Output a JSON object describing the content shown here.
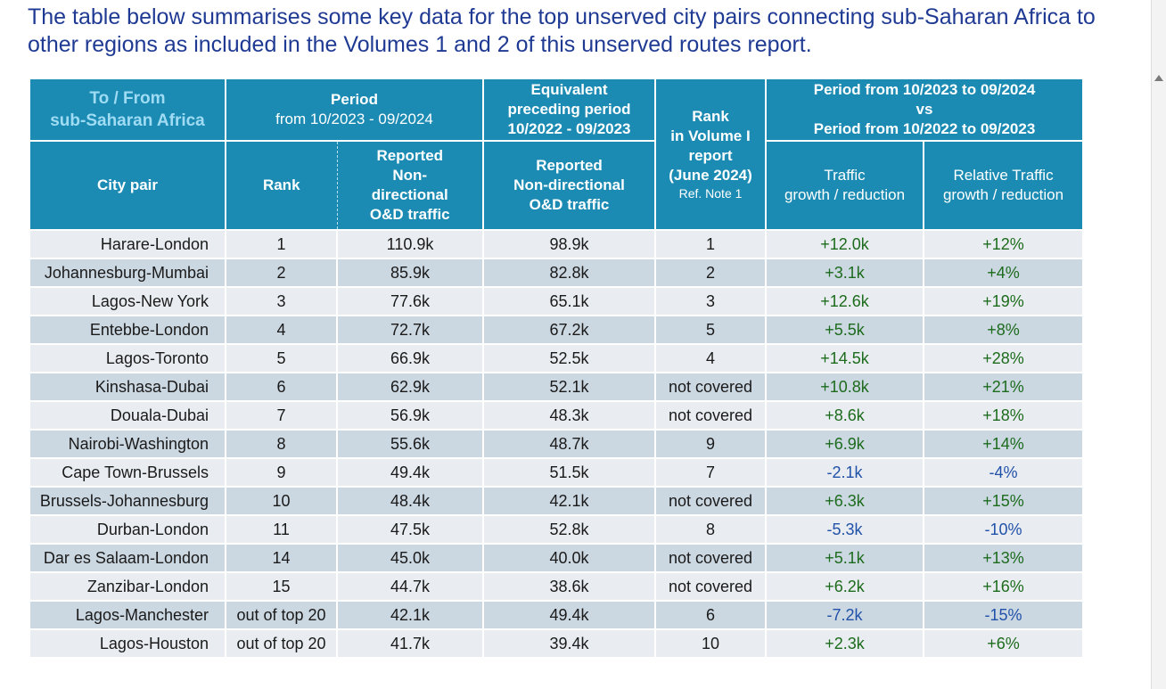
{
  "intro": "The table below summarises some key data for the top unserved city pairs connecting sub-Saharan Africa to other regions as included in the Volumes 1 and 2 of this unserved routes report.",
  "headers": {
    "to_from_line1": "To / From",
    "to_from_line2": "sub-Saharan Africa",
    "period_line1": "Period",
    "period_line2": "from 10/2023 - 09/2024",
    "equiv_line1": "Equivalent",
    "equiv_line2": "preceding period",
    "equiv_line3": "10/2022 - 09/2023",
    "rank_vol_line1": "Rank",
    "rank_vol_line2": "in Volume I",
    "rank_vol_line3": "report",
    "rank_vol_line4": "(June 2024)",
    "rank_vol_note": "Ref. Note 1",
    "growth_period_line1": "Period from 10/2023 to 09/2024",
    "growth_period_line2": "vs",
    "growth_period_line3": "Period from 10/2022 to 09/2023",
    "city_pair": "City pair",
    "rank": "Rank",
    "reported_cur_line1": "Reported",
    "reported_cur_line2": "Non-",
    "reported_cur_line3": "directional",
    "reported_cur_line4": "O&D traffic",
    "reported_prev_line1": "Reported",
    "reported_prev_line2": "Non-directional",
    "reported_prev_line3": "O&D traffic",
    "traffic_line1": "Traffic",
    "traffic_line2": "growth / reduction",
    "relative_line1": "Relative Traffic",
    "relative_line2": "growth / reduction"
  },
  "rows": [
    {
      "city": "Harare-London",
      "rank": "1",
      "cur": "110.9k",
      "prev": "98.9k",
      "vol1": "1",
      "growth": "+12.0k",
      "rel": "+12%"
    },
    {
      "city": "Johannesburg-Mumbai",
      "rank": "2",
      "cur": "85.9k",
      "prev": "82.8k",
      "vol1": "2",
      "growth": "+3.1k",
      "rel": "+4%"
    },
    {
      "city": "Lagos-New York",
      "rank": "3",
      "cur": "77.6k",
      "prev": "65.1k",
      "vol1": "3",
      "growth": "+12.6k",
      "rel": "+19%"
    },
    {
      "city": "Entebbe-London",
      "rank": "4",
      "cur": "72.7k",
      "prev": "67.2k",
      "vol1": "5",
      "growth": "+5.5k",
      "rel": "+8%"
    },
    {
      "city": "Lagos-Toronto",
      "rank": "5",
      "cur": "66.9k",
      "prev": "52.5k",
      "vol1": "4",
      "growth": "+14.5k",
      "rel": "+28%"
    },
    {
      "city": "Kinshasa-Dubai",
      "rank": "6",
      "cur": "62.9k",
      "prev": "52.1k",
      "vol1": "not covered",
      "growth": "+10.8k",
      "rel": "+21%"
    },
    {
      "city": "Douala-Dubai",
      "rank": "7",
      "cur": "56.9k",
      "prev": "48.3k",
      "vol1": "not covered",
      "growth": "+8.6k",
      "rel": "+18%"
    },
    {
      "city": "Nairobi-Washington",
      "rank": "8",
      "cur": "55.6k",
      "prev": "48.7k",
      "vol1": "9",
      "growth": "+6.9k",
      "rel": "+14%"
    },
    {
      "city": "Cape Town-Brussels",
      "rank": "9",
      "cur": "49.4k",
      "prev": "51.5k",
      "vol1": "7",
      "growth": "-2.1k",
      "rel": "-4%"
    },
    {
      "city": "Brussels-Johannesburg",
      "rank": "10",
      "cur": "48.4k",
      "prev": "42.1k",
      "vol1": "not covered",
      "growth": "+6.3k",
      "rel": "+15%"
    },
    {
      "city": "Durban-London",
      "rank": "11",
      "cur": "47.5k",
      "prev": "52.8k",
      "vol1": "8",
      "growth": "-5.3k",
      "rel": "-10%"
    },
    {
      "city": "Dar es Salaam-London",
      "rank": "14",
      "cur": "45.0k",
      "prev": "40.0k",
      "vol1": "not covered",
      "growth": "+5.1k",
      "rel": "+13%"
    },
    {
      "city": "Zanzibar-London",
      "rank": "15",
      "cur": "44.7k",
      "prev": "38.6k",
      "vol1": "not covered",
      "growth": "+6.2k",
      "rel": "+16%"
    },
    {
      "city": "Lagos-Manchester",
      "rank": "out of top 20",
      "cur": "42.1k",
      "prev": "49.4k",
      "vol1": "6",
      "growth": "-7.2k",
      "rel": "-15%"
    },
    {
      "city": "Lagos-Houston",
      "rank": "out of top 20",
      "cur": "41.7k",
      "prev": "39.4k",
      "vol1": "10",
      "growth": "+2.3k",
      "rel": "+6%"
    }
  ],
  "colors": {
    "header_bg": "#1b8bb3",
    "header_accent_text": "#9fdcf3",
    "row_light": "#e9edf1",
    "row_dark": "#cbd7e1",
    "positive": "#1d6b1d",
    "negative": "#2151a8",
    "intro_text": "#1f3a93"
  }
}
